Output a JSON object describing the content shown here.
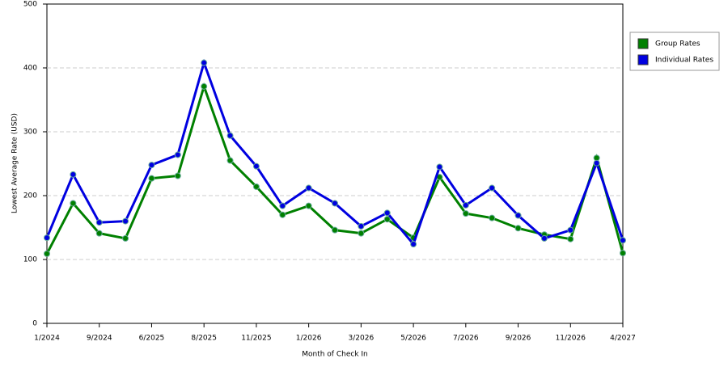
{
  "chart_data": {
    "type": "line",
    "x_label": "Month of Check In",
    "y_label": "Lowest Average Rate (USD)",
    "categories": [
      "1/2024",
      null,
      "9/2024",
      null,
      "6/2025",
      null,
      "8/2025",
      null,
      "11/2025",
      null,
      "1/2026",
      null,
      "3/2026",
      null,
      "5/2026",
      null,
      "7/2026",
      null,
      "9/2026",
      null,
      "11/2026",
      null,
      "4/2027"
    ],
    "series": [
      {
        "name": "Group Rates",
        "color": "#008000",
        "values": [
          109,
          188,
          141,
          133,
          227,
          231,
          371,
          255,
          214,
          170,
          184,
          146,
          141,
          163,
          134,
          229,
          172,
          165,
          149,
          139,
          132,
          259,
          110
        ]
      },
      {
        "name": "Individual Rates",
        "color": "#0000e0",
        "values": [
          134,
          233,
          158,
          160,
          248,
          264,
          408,
          294,
          246,
          184,
          212,
          188,
          152,
          173,
          124,
          245,
          185,
          212,
          169,
          133,
          146,
          251,
          130
        ]
      }
    ],
    "ylim": [
      0,
      500
    ],
    "yticks": [
      0,
      100,
      200,
      300,
      400,
      500
    ],
    "grid": true,
    "legend": "right"
  }
}
